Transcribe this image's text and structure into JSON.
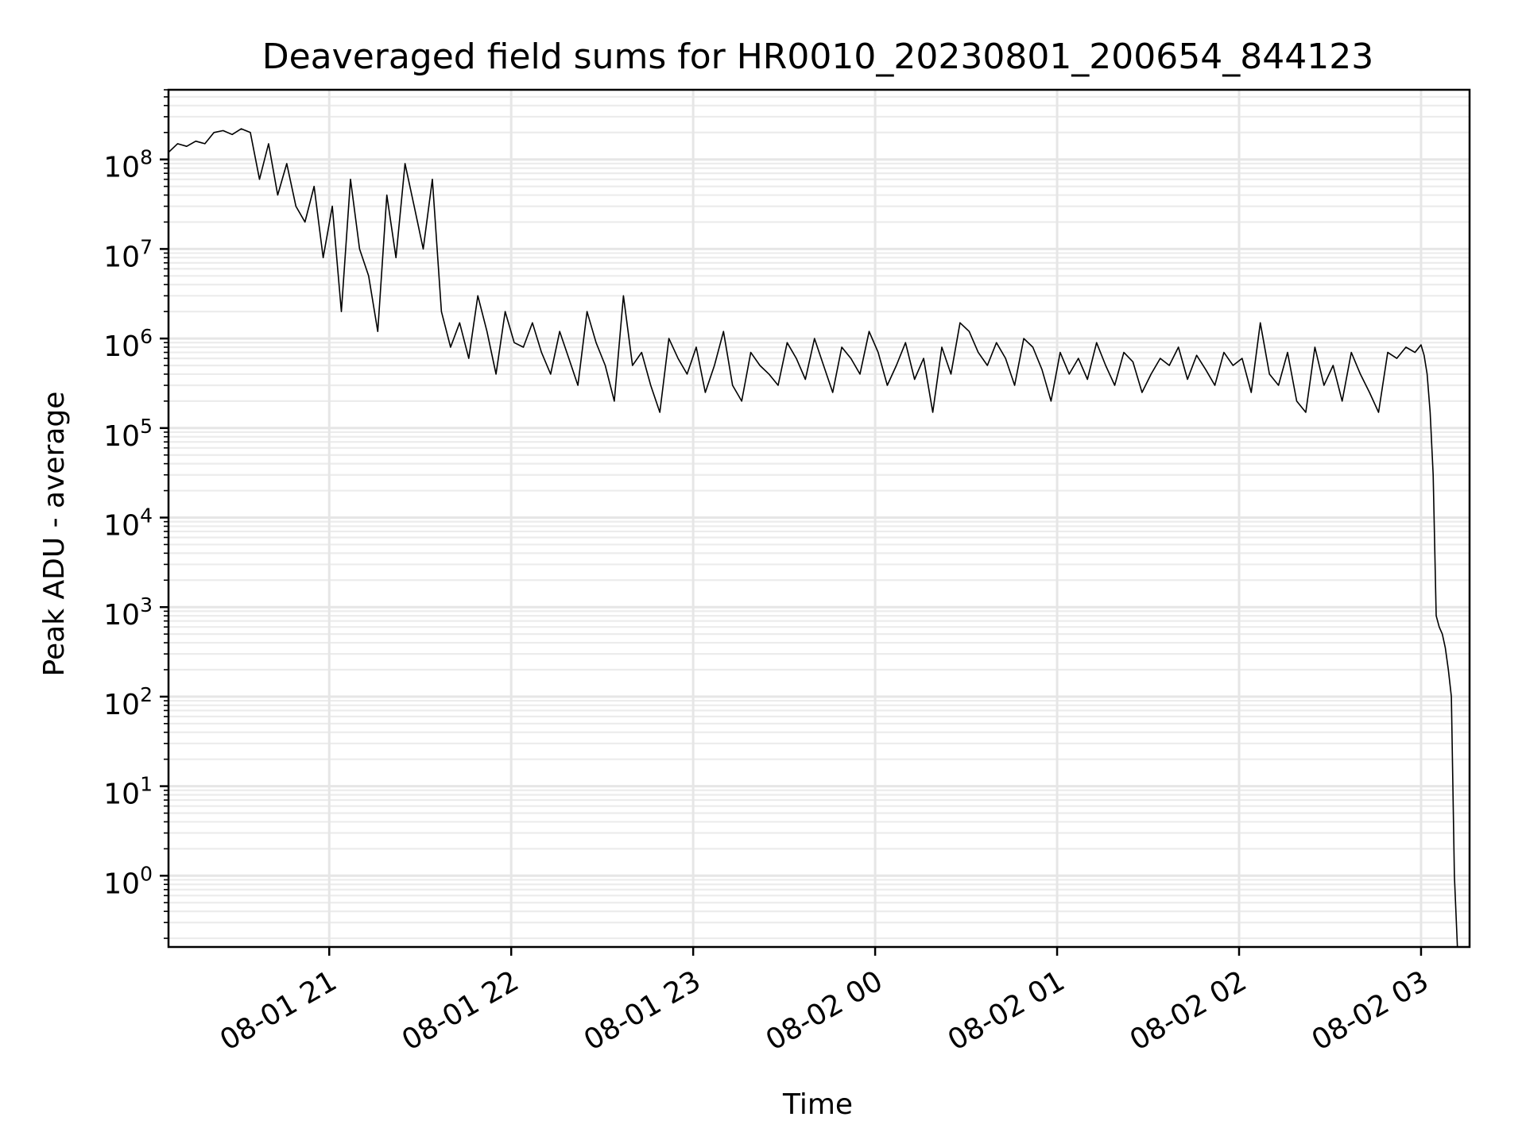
{
  "chart_data": {
    "type": "line",
    "title": "Deaveraged field sums for HR0010_20230801_200654_844123",
    "xlabel": "Time",
    "ylabel": "Peak ADU - average",
    "yscale": "log",
    "grid": "major-and-minor",
    "xlim": [
      "2023-08-01 20:07:00",
      "2023-08-02 03:16:00"
    ],
    "ylim": [
      0.16,
      600000000
    ],
    "x_ticks": [
      {
        "value": "2023-08-01 21:00",
        "label": "08-01 21"
      },
      {
        "value": "2023-08-01 22:00",
        "label": "08-01 22"
      },
      {
        "value": "2023-08-01 23:00",
        "label": "08-01 23"
      },
      {
        "value": "2023-08-02 00:00",
        "label": "08-02 00"
      },
      {
        "value": "2023-08-02 01:00",
        "label": "08-02 01"
      },
      {
        "value": "2023-08-02 02:00",
        "label": "08-02 02"
      },
      {
        "value": "2023-08-02 03:00",
        "label": "08-02 03"
      }
    ],
    "y_ticks": [
      {
        "value": 1,
        "base": "10",
        "exp": "0"
      },
      {
        "value": 10,
        "base": "10",
        "exp": "1"
      },
      {
        "value": 100,
        "base": "10",
        "exp": "2"
      },
      {
        "value": 1000,
        "base": "10",
        "exp": "3"
      },
      {
        "value": 10000,
        "base": "10",
        "exp": "4"
      },
      {
        "value": 100000,
        "base": "10",
        "exp": "5"
      },
      {
        "value": 1000000,
        "base": "10",
        "exp": "6"
      },
      {
        "value": 10000000,
        "base": "10",
        "exp": "7"
      },
      {
        "value": 100000000,
        "base": "10",
        "exp": "8"
      }
    ],
    "series": [
      {
        "color": "#000000",
        "x": [
          "2023-08-01 20:07",
          "2023-08-01 20:10",
          "2023-08-01 20:13",
          "2023-08-01 20:16",
          "2023-08-01 20:19",
          "2023-08-01 20:22",
          "2023-08-01 20:25",
          "2023-08-01 20:28",
          "2023-08-01 20:31",
          "2023-08-01 20:34",
          "2023-08-01 20:37",
          "2023-08-01 20:40",
          "2023-08-01 20:43",
          "2023-08-01 20:46",
          "2023-08-01 20:49",
          "2023-08-01 20:52",
          "2023-08-01 20:55",
          "2023-08-01 20:58",
          "2023-08-01 21:01",
          "2023-08-01 21:04",
          "2023-08-01 21:07",
          "2023-08-01 21:10",
          "2023-08-01 21:13",
          "2023-08-01 21:16",
          "2023-08-01 21:19",
          "2023-08-01 21:22",
          "2023-08-01 21:25",
          "2023-08-01 21:28",
          "2023-08-01 21:31",
          "2023-08-01 21:34",
          "2023-08-01 21:37",
          "2023-08-01 21:40",
          "2023-08-01 21:43",
          "2023-08-01 21:46",
          "2023-08-01 21:49",
          "2023-08-01 21:52",
          "2023-08-01 21:55",
          "2023-08-01 21:58",
          "2023-08-01 22:01",
          "2023-08-01 22:04",
          "2023-08-01 22:07",
          "2023-08-01 22:10",
          "2023-08-01 22:13",
          "2023-08-01 22:16",
          "2023-08-01 22:19",
          "2023-08-01 22:22",
          "2023-08-01 22:25",
          "2023-08-01 22:28",
          "2023-08-01 22:31",
          "2023-08-01 22:34",
          "2023-08-01 22:37",
          "2023-08-01 22:40",
          "2023-08-01 22:43",
          "2023-08-01 22:46",
          "2023-08-01 22:49",
          "2023-08-01 22:52",
          "2023-08-01 22:55",
          "2023-08-01 22:58",
          "2023-08-01 23:01",
          "2023-08-01 23:04",
          "2023-08-01 23:07",
          "2023-08-01 23:10",
          "2023-08-01 23:13",
          "2023-08-01 23:16",
          "2023-08-01 23:19",
          "2023-08-01 23:22",
          "2023-08-01 23:25",
          "2023-08-01 23:28",
          "2023-08-01 23:31",
          "2023-08-01 23:34",
          "2023-08-01 23:37",
          "2023-08-01 23:40",
          "2023-08-01 23:43",
          "2023-08-01 23:46",
          "2023-08-01 23:49",
          "2023-08-01 23:52",
          "2023-08-01 23:55",
          "2023-08-01 23:58",
          "2023-08-02 00:01",
          "2023-08-02 00:04",
          "2023-08-02 00:07",
          "2023-08-02 00:10",
          "2023-08-02 00:13",
          "2023-08-02 00:16",
          "2023-08-02 00:19",
          "2023-08-02 00:22",
          "2023-08-02 00:25",
          "2023-08-02 00:28",
          "2023-08-02 00:31",
          "2023-08-02 00:34",
          "2023-08-02 00:37",
          "2023-08-02 00:40",
          "2023-08-02 00:43",
          "2023-08-02 00:46",
          "2023-08-02 00:49",
          "2023-08-02 00:52",
          "2023-08-02 00:55",
          "2023-08-02 00:58",
          "2023-08-02 01:01",
          "2023-08-02 01:04",
          "2023-08-02 01:07",
          "2023-08-02 01:10",
          "2023-08-02 01:13",
          "2023-08-02 01:16",
          "2023-08-02 01:19",
          "2023-08-02 01:22",
          "2023-08-02 01:25",
          "2023-08-02 01:28",
          "2023-08-02 01:31",
          "2023-08-02 01:34",
          "2023-08-02 01:37",
          "2023-08-02 01:40",
          "2023-08-02 01:43",
          "2023-08-02 01:46",
          "2023-08-02 01:49",
          "2023-08-02 01:52",
          "2023-08-02 01:55",
          "2023-08-02 01:58",
          "2023-08-02 02:01",
          "2023-08-02 02:04",
          "2023-08-02 02:07",
          "2023-08-02 02:10",
          "2023-08-02 02:13",
          "2023-08-02 02:16",
          "2023-08-02 02:19",
          "2023-08-02 02:22",
          "2023-08-02 02:25",
          "2023-08-02 02:28",
          "2023-08-02 02:31",
          "2023-08-02 02:34",
          "2023-08-02 02:37",
          "2023-08-02 02:40",
          "2023-08-02 02:43",
          "2023-08-02 02:46",
          "2023-08-02 02:49",
          "2023-08-02 02:52",
          "2023-08-02 02:55",
          "2023-08-02 02:58",
          "2023-08-02 03:00",
          "2023-08-02 03:01",
          "2023-08-02 03:02",
          "2023-08-02 03:03",
          "2023-08-02 03:04",
          "2023-08-02 03:05",
          "2023-08-02 03:06",
          "2023-08-02 03:07",
          "2023-08-02 03:08",
          "2023-08-02 03:09",
          "2023-08-02 03:10",
          "2023-08-02 03:11",
          "2023-08-02 03:12"
        ],
        "y": [
          120000000,
          150000000,
          140000000,
          160000000,
          150000000,
          200000000,
          210000000,
          190000000,
          220000000,
          200000000,
          60000000,
          150000000,
          40000000,
          90000000,
          30000000,
          20000000,
          50000000,
          8000000,
          30000000,
          2000000,
          60000000,
          10000000,
          5000000,
          1200000,
          40000000,
          8000000,
          90000000,
          30000000,
          10000000,
          60000000,
          2000000,
          800000,
          1500000,
          600000,
          3000000,
          1200000,
          400000,
          2000000,
          900000,
          800000,
          1500000,
          700000,
          400000,
          1200000,
          600000,
          300000,
          2000000,
          900000,
          500000,
          200000,
          3000000,
          500000,
          700000,
          300000,
          150000,
          1000000,
          600000,
          400000,
          800000,
          250000,
          500000,
          1200000,
          300000,
          200000,
          700000,
          500000,
          400000,
          300000,
          900000,
          600000,
          350000,
          1000000,
          500000,
          250000,
          800000,
          600000,
          400000,
          1200000,
          700000,
          300000,
          500000,
          900000,
          350000,
          600000,
          150000,
          800000,
          400000,
          1500000,
          1200000,
          700000,
          500000,
          900000,
          600000,
          300000,
          1000000,
          800000,
          450000,
          200000,
          700000,
          400000,
          600000,
          350000,
          900000,
          500000,
          300000,
          700000,
          550000,
          250000,
          400000,
          600000,
          500000,
          800000,
          350000,
          650000,
          450000,
          300000,
          700000,
          500000,
          600000,
          250000,
          1500000,
          400000,
          300000,
          700000,
          200000,
          150000,
          800000,
          300000,
          500000,
          200000,
          700000,
          400000,
          250000,
          150000,
          700000,
          600000,
          800000,
          700000,
          850000,
          650000,
          400000,
          150000,
          30000,
          800,
          600,
          500,
          350,
          200,
          100,
          1,
          0.16
        ]
      }
    ]
  }
}
